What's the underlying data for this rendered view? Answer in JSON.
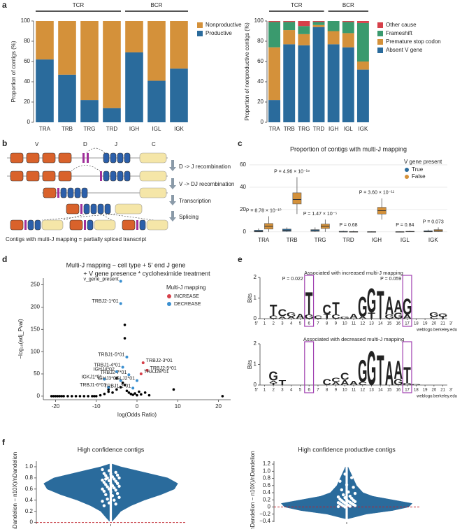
{
  "panel_labels": [
    "a",
    "b",
    "c",
    "d",
    "e",
    "f"
  ],
  "diagram": {
    "segment_labels": [
      "V",
      "D",
      "J",
      "C"
    ],
    "steps": [
      "D -> J recombination",
      "V -> DJ recombination",
      "Transcription",
      "Splicing"
    ],
    "caption": "Contigs with multi-J mapping = partially spliced transcript"
  },
  "chart_data": [
    {
      "type": "stacked_bar",
      "y_label": "Proportion of contigs (%)",
      "groups": [
        {
          "label": "TCR",
          "members": [
            "TRA",
            "TRB",
            "TRG",
            "TRD"
          ]
        },
        {
          "label": "BCR",
          "members": [
            "IGH",
            "IGL",
            "IGK"
          ]
        }
      ],
      "categories": [
        "TRA",
        "TRB",
        "TRG",
        "TRD",
        "IGH",
        "IGL",
        "IGK"
      ],
      "series": [
        {
          "name": "Productive",
          "color": "#2a6b9c",
          "values": [
            62,
            47,
            22,
            14,
            69,
            41,
            53
          ]
        },
        {
          "name": "Nonproductive",
          "color": "#d4913a",
          "values": [
            38,
            53,
            78,
            86,
            31,
            59,
            47
          ]
        }
      ],
      "ylim": [
        0,
        100
      ],
      "yticks": [
        0,
        20,
        40,
        60,
        80,
        100
      ]
    },
    {
      "type": "stacked_bar",
      "y_label": "Proportion of nonproductive contigs (%)",
      "groups": [
        {
          "label": "TCR",
          "members": [
            "TRA",
            "TRB",
            "TRG",
            "TRD"
          ]
        },
        {
          "label": "BCR",
          "members": [
            "IGH",
            "IGL",
            "IGK"
          ]
        }
      ],
      "categories": [
        "TRA",
        "TRB",
        "TRG",
        "TRD",
        "IGH",
        "IGL",
        "IGK"
      ],
      "series": [
        {
          "name": "Absent V gene",
          "color": "#2a6b9c",
          "values": [
            22,
            77,
            76,
            94,
            77,
            74,
            52
          ]
        },
        {
          "name": "Premature stop codon",
          "color": "#d4913a",
          "values": [
            52,
            14,
            11,
            2,
            13,
            14,
            8
          ]
        },
        {
          "name": "Frameshift",
          "color": "#3a9a6e",
          "values": [
            25,
            8,
            8,
            3,
            10,
            11,
            38
          ]
        },
        {
          "name": "Other cause",
          "color": "#d6404a",
          "values": [
            1,
            1,
            5,
            1,
            0,
            1,
            2
          ]
        }
      ],
      "ylim": [
        0,
        100
      ],
      "yticks": [
        0,
        20,
        40,
        60,
        80,
        100
      ]
    },
    {
      "type": "box",
      "title": "Proportion of contigs with multi-J mapping",
      "legend_title": "V gene present",
      "categories": [
        "TRA",
        "TRB",
        "TRG",
        "TRD",
        "IGH",
        "IGL",
        "IGK"
      ],
      "p_values": [
        "P = 8.78 × 10⁻¹⁰",
        "P = 4.96 × 10⁻¹⁹",
        "P = 1.47 × 10⁻⁵",
        "P = 0.68",
        "P = 3.60 × 10⁻¹¹",
        "P = 0.84",
        "P = 0.073"
      ],
      "series": [
        {
          "name": "True",
          "color": "#2a6b9c",
          "boxes": [
            {
              "low": 0,
              "q1": 0,
              "median": 0.5,
              "q3": 1.5,
              "high": 3
            },
            {
              "low": 0,
              "q1": 0.5,
              "median": 1.5,
              "q3": 2.5,
              "high": 4
            },
            {
              "low": 0,
              "q1": 0.5,
              "median": 1,
              "q3": 2,
              "high": 4
            },
            {
              "low": 0,
              "q1": 0,
              "median": 0,
              "q3": 0.5,
              "high": 1
            },
            {
              "low": 0,
              "q1": 0,
              "median": 0,
              "q3": 0.2,
              "high": 0.5
            },
            {
              "low": 0,
              "q1": 0,
              "median": 0,
              "q3": 0.2,
              "high": 0.5
            },
            {
              "low": 0,
              "q1": 0,
              "median": 0.3,
              "q3": 1,
              "high": 2
            }
          ]
        },
        {
          "name": "False",
          "color": "#d4913a",
          "boxes": [
            {
              "low": 0,
              "q1": 2.5,
              "median": 5,
              "q3": 7.5,
              "high": 14
            },
            {
              "low": 16,
              "q1": 25,
              "median": 29,
              "q3": 35,
              "high": 49
            },
            {
              "low": 0,
              "q1": 3,
              "median": 5,
              "q3": 7,
              "high": 11
            },
            {
              "low": 0,
              "q1": 0,
              "median": 0,
              "q3": 0.3,
              "high": 1
            },
            {
              "low": 11,
              "q1": 16,
              "median": 19,
              "q3": 22,
              "high": 30
            },
            {
              "low": 0,
              "q1": 0,
              "median": 0.2,
              "q3": 0.5,
              "high": 1
            },
            {
              "low": 0,
              "q1": 0.3,
              "median": 1,
              "q3": 2,
              "high": 4
            }
          ]
        }
      ],
      "ylim": [
        -2,
        65
      ],
      "yticks": [
        0,
        20,
        40,
        60
      ],
      "grid": true
    },
    {
      "type": "scatter",
      "title": [
        "Multi-J mapping ~ cell type + 5′ end J gene",
        "+ V gene presence * cycloheximide treatment"
      ],
      "x_label": "log(Odds Ratio)",
      "y_label": "−log₁₀(adj_Pval)",
      "legend_title": "Multi-J mapping",
      "series": [
        {
          "name": "INCREASE",
          "color": "#d6404a",
          "x": [
            1.5,
            2.5,
            1
          ],
          "y": [
            75,
            58,
            50
          ],
          "labels": [
            "TRBJ2-3*01",
            "TRBJ2-5*01",
            "TRAJ28*01"
          ]
        },
        {
          "name": "DECREASE",
          "color": "#3a8fd0",
          "x": [
            -4,
            -4,
            -2.5,
            -3.5,
            -5,
            -2,
            -8,
            -4,
            0,
            -7,
            -1
          ],
          "y": [
            258,
            208,
            88,
            65,
            55,
            48,
            38,
            35,
            35,
            20,
            18
          ],
          "labels": [
            "v_gene_present",
            "TRBJ2-1*01",
            "TRBJ1-5*01",
            "TRBJ1-4*01",
            "IGHJ4*02",
            "TRBJ2-7*01",
            "IGKJ1*01",
            "IGHJ3*02",
            "IGLJ2*01",
            "TRBJ1-6*01",
            "TRBJ1-2*01"
          ]
        }
      ],
      "other_points": {
        "color": "#000000",
        "x": [
          -21,
          -20.5,
          -20,
          -19.5,
          -19,
          -18.5,
          -18,
          -17,
          -16,
          -15,
          -14,
          -13,
          -12,
          -11,
          -10.5,
          -10,
          -9,
          -8,
          -7,
          -6,
          -5,
          -4,
          -3.5,
          -3,
          -2.5,
          -2,
          -1.5,
          -1,
          -0.5,
          0,
          0.5,
          1,
          2,
          3,
          9,
          21,
          -3,
          -3,
          -7,
          -5
        ],
        "y": [
          0,
          0,
          0,
          0,
          0,
          0,
          0,
          0,
          0,
          0,
          0,
          0,
          0,
          0,
          0,
          0,
          2,
          5,
          10,
          8,
          15,
          20,
          30,
          25,
          12,
          8,
          5,
          3,
          6,
          2,
          10,
          4,
          8,
          2,
          15,
          0,
          160,
          130,
          15,
          40
        ]
      },
      "xlim": [
        -23,
        23
      ],
      "xticks": [
        -20,
        -10,
        0,
        10,
        20
      ],
      "ylim": [
        -8,
        265
      ],
      "yticks": [
        0,
        50,
        100,
        150,
        200,
        250
      ]
    },
    {
      "type": "logo",
      "title": "Associated with increased multi-J mapping",
      "y_label": "Bits",
      "ylim": [
        0,
        2
      ],
      "yticks": [
        0,
        1,
        2
      ],
      "xlim": [
        0.5,
        21.5
      ],
      "xticks": [
        1,
        2,
        3,
        4,
        5,
        6,
        7,
        8,
        9,
        10,
        11,
        12,
        13,
        14,
        15,
        16,
        17,
        18,
        19,
        20,
        21
      ],
      "ends": [
        "5′",
        "3′"
      ],
      "credit": "weblogo.berkeley.edu",
      "letter_colors": {
        "A": "#2ca02c",
        "C": "#2b5faa",
        "G": "#f0a020",
        "T": "#d62020"
      },
      "highlights": [
        {
          "position": 6,
          "label": "P = 0.022"
        },
        {
          "position": 17,
          "label": "P = 0.059"
        }
      ],
      "stacks": [
        [],
        [
          {
            "letter": "C",
            "bits": 0.15
          },
          {
            "letter": "T",
            "bits": 0.55
          }
        ],
        [
          {
            "letter": "A",
            "bits": 0.12
          },
          {
            "letter": "C",
            "bits": 0.35
          }
        ],
        [
          {
            "letter": "A",
            "bits": 0.1
          },
          {
            "letter": "G",
            "bits": 0.2
          }
        ],
        [
          {
            "letter": "A",
            "bits": 0.25
          }
        ],
        [
          {
            "letter": "G",
            "bits": 0.2
          },
          {
            "letter": "T",
            "bits": 1.1
          }
        ],
        [
          {
            "letter": "C",
            "bits": 0.15
          }
        ],
        [
          {
            "letter": "T",
            "bits": 0.2
          },
          {
            "letter": "C",
            "bits": 0.5
          }
        ],
        [
          {
            "letter": "C",
            "bits": 0.2
          },
          {
            "letter": "T",
            "bits": 0.6
          }
        ],
        [
          {
            "letter": "G",
            "bits": 0.1
          }
        ],
        [
          {
            "letter": "A",
            "bits": 0.25
          }
        ],
        [
          {
            "letter": "A",
            "bits": 0.1
          },
          {
            "letter": "G",
            "bits": 1.0
          }
        ],
        [
          {
            "letter": "T",
            "bits": 0.3
          },
          {
            "letter": "G",
            "bits": 1.2
          }
        ],
        [
          {
            "letter": "T",
            "bits": 1.4
          }
        ],
        [
          {
            "letter": "G",
            "bits": 0.2
          },
          {
            "letter": "A",
            "bits": 0.9
          }
        ],
        [
          {
            "letter": "G",
            "bits": 0.3
          },
          {
            "letter": "A",
            "bits": 0.6
          }
        ],
        [
          {
            "letter": "A",
            "bits": 0.2
          },
          {
            "letter": "G",
            "bits": 0.8
          }
        ],
        [],
        [],
        [
          {
            "letter": "C",
            "bits": 0.1
          },
          {
            "letter": "G",
            "bits": 0.2
          }
        ],
        [
          {
            "letter": "T",
            "bits": 0.1
          },
          {
            "letter": "G",
            "bits": 0.15
          }
        ]
      ]
    },
    {
      "type": "logo",
      "title": "Associated with decreased multi-J mapping",
      "y_label": "Bits",
      "ylim": [
        0,
        2
      ],
      "yticks": [
        0,
        1,
        2
      ],
      "xlim": [
        0.5,
        21.5
      ],
      "xticks": [
        1,
        2,
        3,
        4,
        5,
        6,
        7,
        8,
        9,
        10,
        11,
        12,
        13,
        14,
        15,
        16,
        17,
        18,
        19,
        20,
        21
      ],
      "ends": [
        "5′",
        "3′"
      ],
      "credit": "weblogo.berkeley.edu",
      "letter_colors": {
        "A": "#2ca02c",
        "C": "#2b5faa",
        "G": "#f0a020",
        "T": "#d62020"
      },
      "highlights": [
        {
          "position": 6
        },
        {
          "position": 17
        }
      ],
      "stacks": [
        [],
        [
          {
            "letter": "T",
            "bits": 0.1
          },
          {
            "letter": "A",
            "bits": 0.12
          },
          {
            "letter": "G",
            "bits": 0.45
          }
        ],
        [
          {
            "letter": "T",
            "bits": 0.25
          }
        ],
        [],
        [],
        [],
        [],
        [
          {
            "letter": "C",
            "bits": 0.3
          }
        ],
        [
          {
            "letter": "A",
            "bits": 0.15
          },
          {
            "letter": "C",
            "bits": 0.2
          }
        ],
        [
          {
            "letter": "A",
            "bits": 0.25
          },
          {
            "letter": "C",
            "bits": 0.35
          }
        ],
        [
          {
            "letter": "A",
            "bits": 0.2
          }
        ],
        [
          {
            "letter": "C",
            "bits": 0.15
          },
          {
            "letter": "G",
            "bits": 1.1
          }
        ],
        [
          {
            "letter": "G",
            "bits": 1.7
          }
        ],
        [
          {
            "letter": "T",
            "bits": 1.5
          }
        ],
        [
          {
            "letter": "A",
            "bits": 1.2
          }
        ],
        [
          {
            "letter": "G",
            "bits": 0.3
          },
          {
            "letter": "A",
            "bits": 0.9
          }
        ],
        [
          {
            "letter": "G",
            "bits": 0.1
          },
          {
            "letter": "T",
            "bits": 0.8
          }
        ],
        [
          {
            "letter": "G",
            "bits": 0.05
          }
        ],
        [],
        [],
        []
      ]
    },
    {
      "type": "violin",
      "title": "High confidence contigs",
      "y_label": "(nDandelion − n10X)/nDandelion",
      "color": "#2a6b9c",
      "reference_line": 0,
      "density": {
        "y": [
          0.02,
          0.1,
          0.2,
          0.3,
          0.4,
          0.5,
          0.6,
          0.7,
          0.8,
          0.9,
          1.0,
          1.05
        ],
        "width": [
          0.02,
          0.08,
          0.15,
          0.3,
          0.5,
          0.75,
          0.95,
          1.0,
          0.85,
          0.5,
          0.15,
          0.02
        ]
      },
      "points": [
        0.95,
        0.93,
        0.9,
        0.88,
        0.87,
        0.85,
        0.84,
        0.82,
        0.8,
        0.8,
        0.78,
        0.76,
        0.75,
        0.74,
        0.72,
        0.7,
        0.7,
        0.68,
        0.66,
        0.65,
        0.64,
        0.62,
        0.6,
        0.6,
        0.58,
        0.56,
        0.55,
        0.52,
        0.5,
        0.48,
        0.45,
        0.42,
        0.4,
        0.38,
        0.35,
        0.33,
        0.3,
        0.62,
        0.7,
        0.78
      ],
      "ylim": [
        -0.03,
        1.1
      ],
      "yticks": [
        0,
        0.2,
        0.4,
        0.6,
        0.8,
        {
          "value": 1,
          "label": "1.0"
        }
      ]
    },
    {
      "type": "violin",
      "title": "High confidence productive contigs",
      "y_label": "(nDandelion − n10X)/nDandelion",
      "color": "#2a6b9c",
      "reference_line": 0,
      "density": {
        "y": [
          -0.33,
          -0.2,
          -0.1,
          0,
          0.1,
          0.2,
          0.3,
          0.4,
          0.5,
          0.6,
          0.8,
          1.0,
          1.12
        ],
        "width": [
          0.02,
          0.3,
          0.7,
          0.95,
          1.0,
          0.7,
          0.4,
          0.25,
          0.2,
          0.15,
          0.1,
          0.05,
          0.02
        ]
      },
      "points": [
        1.0,
        0.92,
        0.82,
        0.72,
        0.62,
        0.55,
        0.48,
        0.42,
        0.38,
        0.34,
        0.3,
        0.28,
        0.26,
        0.24,
        0.22,
        0.2,
        0.19,
        0.18,
        0.16,
        0.15,
        0.14,
        0.13,
        0.12,
        0.11,
        0.1,
        0.09,
        0.08,
        0.07,
        0.06,
        0.05,
        0.04,
        0.03,
        0.02,
        0.01,
        0.0
      ],
      "ylim": [
        -0.42,
        1.28
      ],
      "yticks": [
        {
          "value": -0.4,
          "label": "−0.4"
        },
        {
          "value": -0.2,
          "label": "−0.2"
        },
        0,
        0.2,
        0.4,
        0.6,
        0.8,
        {
          "value": 1,
          "label": "1.0"
        },
        1.2
      ]
    }
  ]
}
